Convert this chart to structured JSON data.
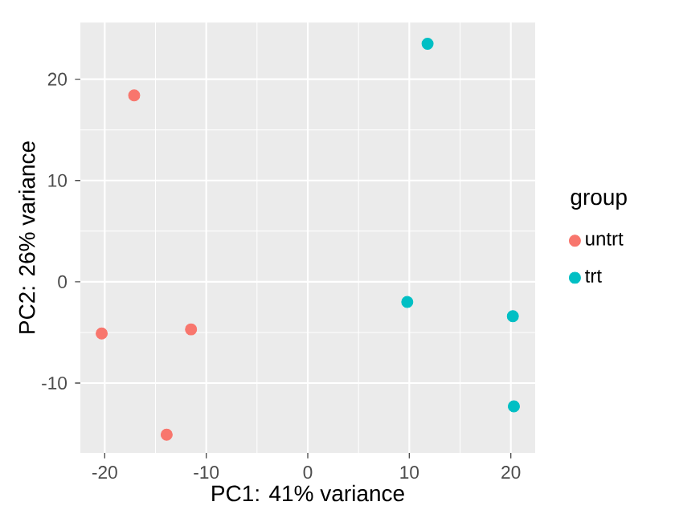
{
  "chart_data": {
    "type": "scatter",
    "xlabel": "PC1: 41% variance",
    "ylabel": "PC2: 26% variance",
    "legend_title": "group",
    "xlim": [
      -22.4,
      22.4
    ],
    "ylim": [
      -16.9,
      25.6
    ],
    "xticks": [
      -20,
      -10,
      0,
      10,
      20
    ],
    "yticks": [
      -10,
      0,
      10,
      20
    ],
    "grid": true,
    "legend": "right",
    "series": [
      {
        "name": "untrt",
        "color": "#f8766d",
        "x": [
          -17.1,
          -20.3,
          -11.5,
          -13.9
        ],
        "values": [
          18.4,
          -5.1,
          -4.7,
          -15.1
        ]
      },
      {
        "name": "trt",
        "color": "#00bfc4",
        "x": [
          11.8,
          9.8,
          20.2,
          20.3
        ],
        "values": [
          23.5,
          -2.0,
          -3.4,
          -12.3
        ]
      }
    ]
  }
}
